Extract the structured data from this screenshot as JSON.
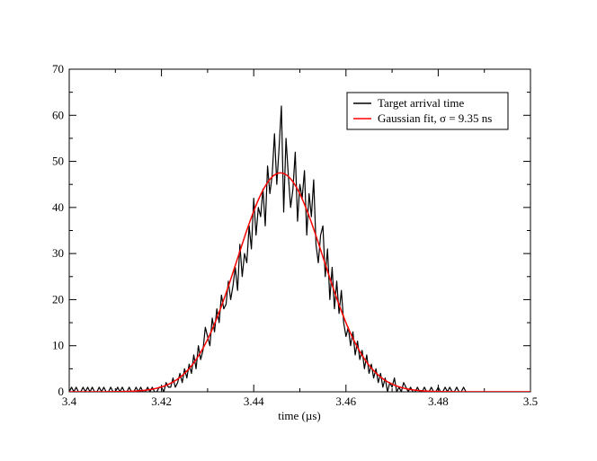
{
  "chart_data": {
    "type": "line",
    "title": "",
    "xlabel": "time (µs)",
    "ylabel": "",
    "xlim": [
      3.4,
      3.5
    ],
    "ylim": [
      0,
      70
    ],
    "xticks": [
      3.4,
      3.42,
      3.44,
      3.46,
      3.48,
      3.5
    ],
    "xtick_labels": [
      "3.4",
      "3.42",
      "3.44",
      "3.46",
      "3.48",
      "3.5"
    ],
    "yticks": [
      0,
      10,
      20,
      30,
      40,
      50,
      60,
      70
    ],
    "ytick_labels": [
      "0",
      "10",
      "20",
      "30",
      "40",
      "50",
      "60",
      "70"
    ],
    "grid": false,
    "legend_position": "top-right",
    "series": [
      {
        "name": "Target arrival time",
        "color": "#000000",
        "x": [
          3.4,
          3.4005,
          3.401,
          3.4015,
          3.402,
          3.4025,
          3.403,
          3.4035,
          3.404,
          3.4045,
          3.405,
          3.4055,
          3.406,
          3.4065,
          3.407,
          3.4075,
          3.408,
          3.4085,
          3.409,
          3.4095,
          3.41,
          3.4105,
          3.411,
          3.4115,
          3.412,
          3.4125,
          3.413,
          3.4135,
          3.414,
          3.4145,
          3.415,
          3.4155,
          3.416,
          3.4165,
          3.417,
          3.4175,
          3.418,
          3.4185,
          3.419,
          3.4195,
          3.42,
          3.4205,
          3.421,
          3.4215,
          3.422,
          3.4225,
          3.423,
          3.4235,
          3.424,
          3.4245,
          3.425,
          3.4255,
          3.426,
          3.4265,
          3.427,
          3.4275,
          3.428,
          3.4285,
          3.429,
          3.4295,
          3.43,
          3.4305,
          3.431,
          3.4315,
          3.432,
          3.4325,
          3.433,
          3.4335,
          3.434,
          3.4345,
          3.435,
          3.4355,
          3.436,
          3.4365,
          3.437,
          3.4375,
          3.438,
          3.4385,
          3.439,
          3.4395,
          3.44,
          3.4405,
          3.441,
          3.4415,
          3.442,
          3.4425,
          3.443,
          3.4435,
          3.444,
          3.4445,
          3.445,
          3.4455,
          3.446,
          3.4465,
          3.447,
          3.4475,
          3.448,
          3.4485,
          3.449,
          3.4495,
          3.45,
          3.4505,
          3.451,
          3.4515,
          3.452,
          3.4525,
          3.453,
          3.4535,
          3.454,
          3.4545,
          3.455,
          3.4555,
          3.456,
          3.4565,
          3.457,
          3.4575,
          3.458,
          3.4585,
          3.459,
          3.4595,
          3.46,
          3.4605,
          3.461,
          3.4615,
          3.462,
          3.4625,
          3.463,
          3.4635,
          3.464,
          3.4645,
          3.465,
          3.4655,
          3.466,
          3.4665,
          3.467,
          3.4675,
          3.468,
          3.4685,
          3.469,
          3.4695,
          3.47,
          3.4705,
          3.471,
          3.4715,
          3.472,
          3.4725,
          3.473,
          3.4735,
          3.474,
          3.4745,
          3.475,
          3.4755,
          3.476,
          3.4765,
          3.477,
          3.4775,
          3.478,
          3.4785,
          3.479,
          3.4795,
          3.48,
          3.4805,
          3.481,
          3.4815,
          3.482,
          3.4825,
          3.483,
          3.4835,
          3.484,
          3.4845,
          3.485,
          3.4855,
          3.486,
          3.4865,
          3.487,
          3.4875,
          3.488,
          3.4885,
          3.489,
          3.4895,
          3.49,
          3.4905,
          3.491,
          3.4915,
          3.492,
          3.4925,
          3.493,
          3.4935,
          3.494,
          3.4945,
          3.495,
          3.4955,
          3.496,
          3.4965,
          3.497,
          3.4975,
          3.498,
          3.4985,
          3.499,
          3.4995,
          3.5
        ],
        "y": [
          0,
          1,
          0,
          1,
          0,
          0,
          1,
          0,
          1,
          0,
          1,
          0,
          0,
          1,
          0,
          1,
          0,
          0,
          1,
          0,
          0,
          1,
          0,
          1,
          0,
          0,
          1,
          0,
          0,
          1,
          0,
          1,
          0,
          0,
          1,
          0,
          1,
          0,
          0,
          1,
          1,
          0,
          2,
          1,
          1,
          3,
          1,
          2,
          4,
          2,
          5,
          3,
          6,
          4,
          8,
          5,
          10,
          7,
          9,
          14,
          12,
          10,
          16,
          13,
          18,
          15,
          21,
          18,
          19,
          24,
          20,
          23,
          27,
          22,
          32,
          25,
          30,
          28,
          36,
          31,
          42,
          34,
          40,
          38,
          44,
          36,
          49,
          43,
          47,
          56,
          45,
          53,
          62,
          39,
          55,
          47,
          40,
          44,
          52,
          37,
          45,
          42,
          48,
          34,
          43,
          38,
          46,
          32,
          28,
          34,
          36,
          25,
          31,
          20,
          27,
          18,
          24,
          17,
          22,
          15,
          12,
          14,
          10,
          13,
          8,
          11,
          7,
          9,
          5,
          8,
          4,
          6,
          3,
          5,
          2,
          4,
          1,
          3,
          0,
          2,
          1,
          3,
          0,
          1,
          0,
          2,
          1,
          0,
          1,
          0,
          0,
          1,
          0,
          0,
          1,
          0,
          0,
          1,
          0,
          0,
          1,
          0,
          0,
          1,
          0,
          1,
          0,
          0,
          1,
          0,
          0,
          1,
          0,
          0,
          0,
          0,
          0,
          0,
          0,
          0,
          0,
          0,
          0,
          0,
          0,
          0,
          0,
          0,
          0,
          0,
          0,
          0,
          0,
          0,
          0,
          0,
          0,
          0,
          0,
          0,
          0
        ]
      },
      {
        "name": "Gaussian fit, σ = 9.35 ns",
        "color": "#ff0000",
        "fit": "gaussian",
        "amplitude": 47.5,
        "mean": 3.4458,
        "sigma": 0.00935
      }
    ]
  }
}
